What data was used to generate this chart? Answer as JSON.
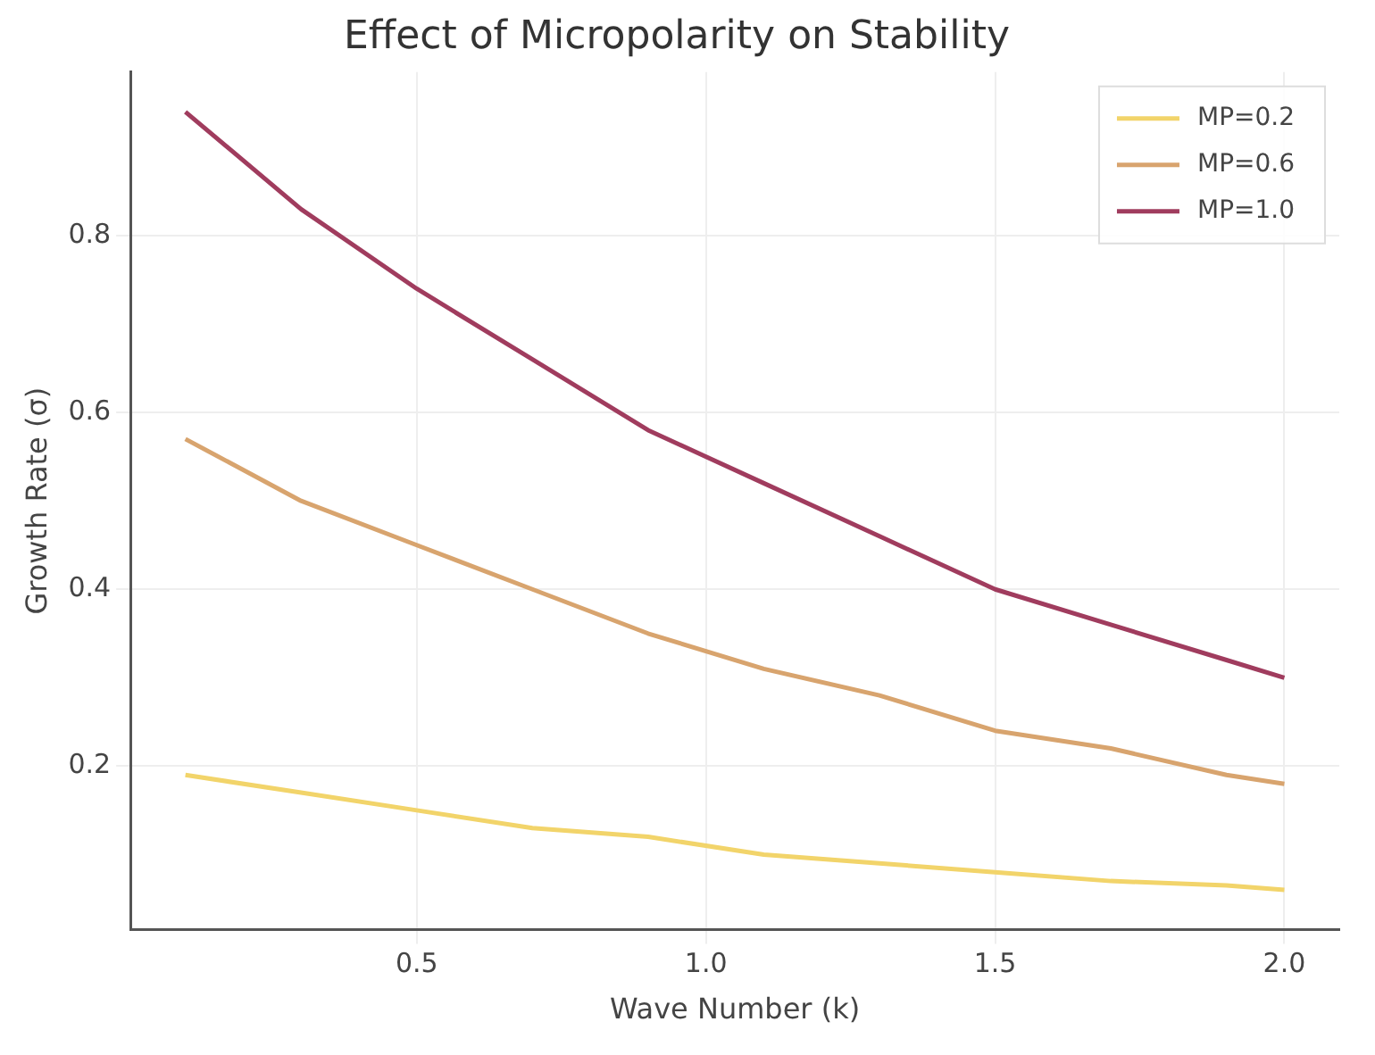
{
  "chart_data": {
    "type": "line",
    "title": "Effect of Micropolarity on Stability",
    "xlabel": "Wave Number (k)",
    "ylabel": "Growth Rate (σ)",
    "x": [
      0.1,
      0.3,
      0.5,
      0.7,
      0.9,
      1.1,
      1.3,
      1.5,
      1.7,
      1.9,
      2.0
    ],
    "series": [
      {
        "name": "MP=0.2",
        "color": "#f2d46a",
        "values": [
          0.19,
          0.17,
          0.15,
          0.13,
          0.12,
          0.1,
          0.09,
          0.08,
          0.07,
          0.065,
          0.06
        ]
      },
      {
        "name": "MP=0.6",
        "color": "#d8a46e",
        "values": [
          0.57,
          0.5,
          0.45,
          0.4,
          0.35,
          0.31,
          0.28,
          0.24,
          0.22,
          0.19,
          0.18
        ]
      },
      {
        "name": "MP=1.0",
        "color": "#a03c5e",
        "values": [
          0.94,
          0.83,
          0.74,
          0.66,
          0.58,
          0.52,
          0.46,
          0.4,
          0.36,
          0.32,
          0.3
        ]
      }
    ],
    "xlim": [
      0.005,
      2.095
    ],
    "ylim": [
      0.015,
      0.985
    ],
    "xticks": [
      0.5,
      {
        "value": 1,
        "label": "1.0"
      },
      1.5,
      {
        "value": 2,
        "label": "2.0"
      }
    ],
    "yticks": [
      0.2,
      0.4,
      0.6,
      0.8
    ],
    "grid": true,
    "legend": "top right",
    "marker": "none",
    "line_style": "solid"
  }
}
